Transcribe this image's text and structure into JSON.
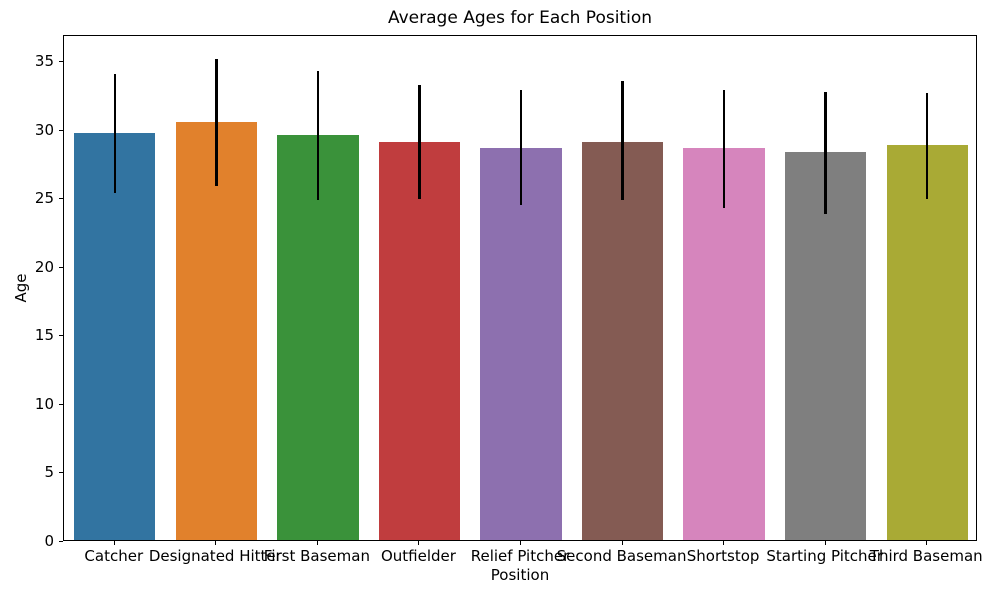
{
  "chart_data": {
    "type": "bar",
    "title": "Average Ages for Each Position",
    "xlabel": "Position",
    "ylabel": "Age",
    "categories": [
      "Catcher",
      "Designated Hitter",
      "First Baseman",
      "Outfielder",
      "Relief Pitcher",
      "Second Baseman",
      "Shortstop",
      "Starting Pitcher",
      "Third Baseman"
    ],
    "values": [
      29.7,
      30.5,
      29.5,
      29.0,
      28.6,
      29.0,
      28.6,
      28.3,
      28.8
    ],
    "error_low": [
      25.3,
      25.8,
      24.8,
      24.9,
      24.4,
      24.8,
      24.2,
      23.8,
      24.9
    ],
    "error_high": [
      34.0,
      35.1,
      34.2,
      33.2,
      32.8,
      33.5,
      32.8,
      32.7,
      32.6
    ],
    "bar_colors": [
      "#3274a1",
      "#e1812c",
      "#3a923a",
      "#c03d3e",
      "#8d70af",
      "#845b53",
      "#d685bd",
      "#7f7f7f",
      "#a9aa35"
    ],
    "error_bar_color": "#000000",
    "yticks": [
      0,
      5,
      10,
      15,
      20,
      25,
      30,
      35
    ],
    "ylim": [
      0,
      36.9
    ],
    "bar_width_fraction": 0.8,
    "grid": "off",
    "legend": "none"
  }
}
